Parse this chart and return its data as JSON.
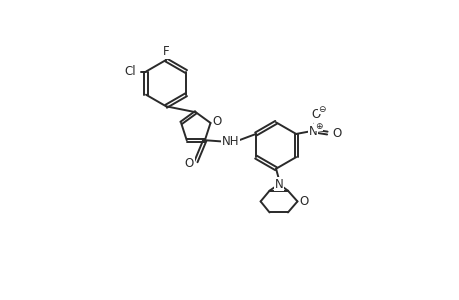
{
  "bg_color": "#ffffff",
  "line_color": "#2a2a2a",
  "line_width": 1.4,
  "font_size": 8.5,
  "fig_width": 4.6,
  "fig_height": 3.0,
  "dpi": 100,
  "xlim": [
    0,
    10
  ],
  "ylim": [
    0,
    10
  ]
}
